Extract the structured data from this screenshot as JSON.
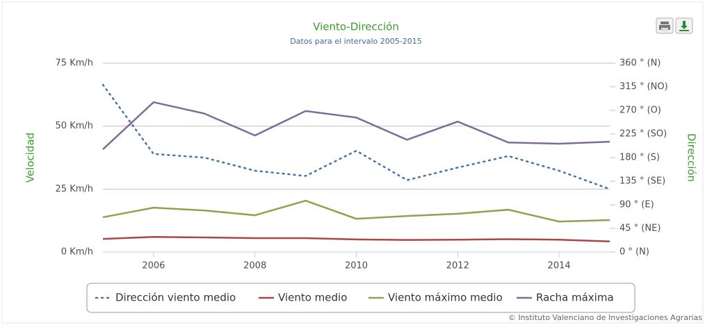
{
  "chart_data": {
    "type": "line",
    "title": "Viento-Dirección",
    "subtitle": "Datos para el intervalo 2005-2015",
    "y_label": "Velocidad",
    "y2_label": "Dirección",
    "credits": "© Instituto Valenciano de Investigaciones Agrarias",
    "x": [
      2005,
      2006,
      2007,
      2008,
      2009,
      2010,
      2011,
      2012,
      2013,
      2014,
      2015
    ],
    "xlim": [
      2005,
      2015
    ],
    "xticks": [
      2006,
      2008,
      2010,
      2012,
      2014
    ],
    "ylim": [
      0,
      75
    ],
    "yticks": [
      {
        "value": 0,
        "label": "0 Km/h"
      },
      {
        "value": 25,
        "label": "25 Km/h"
      },
      {
        "value": 50,
        "label": "50 Km/h"
      },
      {
        "value": 75,
        "label": "75 Km/h"
      }
    ],
    "y2lim": [
      0,
      360
    ],
    "y2ticks": [
      {
        "value": 0,
        "label": "0 ° (N)"
      },
      {
        "value": 45,
        "label": "45 ° (NE)"
      },
      {
        "value": 90,
        "label": "90 ° (E)"
      },
      {
        "value": 135,
        "label": "135 ° (SE)"
      },
      {
        "value": 180,
        "label": "180 ° (S)"
      },
      {
        "value": 225,
        "label": "225 ° (SO)"
      },
      {
        "value": 270,
        "label": "270 ° (O)"
      },
      {
        "value": 315,
        "label": "315 ° (NO)"
      },
      {
        "value": 360,
        "label": "360 ° (N)"
      }
    ],
    "grid": true,
    "legend": "bottom",
    "series": [
      {
        "name": "Dirección viento medio",
        "color": "#4572a7",
        "dashed": true,
        "axis": "y2",
        "values": [
          319,
          187,
          180,
          155,
          145,
          193,
          137,
          161,
          183,
          155,
          120
        ]
      },
      {
        "name": "Viento medio",
        "color": "#aa4643",
        "values": [
          5.2,
          6,
          5.8,
          5.5,
          5.5,
          5,
          4.8,
          4.9,
          5.1,
          4.9,
          4.2
        ]
      },
      {
        "name": "Viento máximo medio",
        "color": "#89a54e",
        "values": [
          13.8,
          17.6,
          16.5,
          14.6,
          20.4,
          13.2,
          14.3,
          15.2,
          16.8,
          12.1,
          12.7
        ]
      },
      {
        "name": "Racha máxima",
        "color": "#80699b",
        "values": [
          40.8,
          59.5,
          55,
          46.3,
          56,
          53.4,
          44.6,
          51.8,
          43.5,
          43,
          43.8
        ]
      }
    ]
  }
}
